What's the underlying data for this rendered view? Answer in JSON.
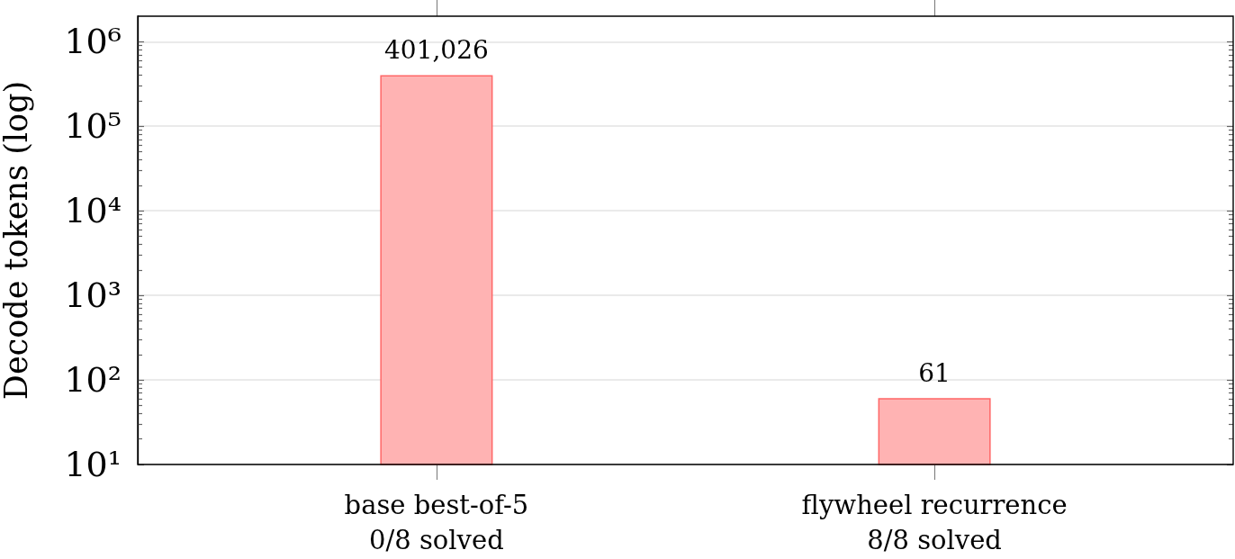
{
  "chart_data": {
    "type": "bar",
    "ylabel": "Decode tokens (log)",
    "categories": [
      "base best-of-5\n0/8 solved",
      "flywheel recurrence\n8/8 solved"
    ],
    "values": [
      401026,
      61
    ],
    "value_labels": [
      "401,026",
      "61"
    ],
    "color": "#ffb3b3",
    "log": true,
    "ylim": [
      10,
      2000000
    ],
    "yticks": [
      {
        "value": 10,
        "label": "10¹"
      },
      {
        "value": 20,
        "label": null
      },
      {
        "value": 30,
        "label": null
      },
      {
        "value": 40,
        "label": null
      },
      {
        "value": 50,
        "label": null
      },
      {
        "value": 60,
        "label": null
      },
      {
        "value": 70,
        "label": null
      },
      {
        "value": 80,
        "label": null
      },
      {
        "value": 90,
        "label": null
      },
      {
        "value": 100,
        "label": "10²"
      },
      {
        "value": 200,
        "label": null
      },
      {
        "value": 300,
        "label": null
      },
      {
        "value": 400,
        "label": null
      },
      {
        "value": 500,
        "label": null
      },
      {
        "value": 600,
        "label": null
      },
      {
        "value": 700,
        "label": null
      },
      {
        "value": 800,
        "label": null
      },
      {
        "value": 900,
        "label": null
      },
      {
        "value": 1000,
        "label": "10³"
      },
      {
        "value": 2000,
        "label": null
      },
      {
        "value": 3000,
        "label": null
      },
      {
        "value": 4000,
        "label": null
      },
      {
        "value": 5000,
        "label": null
      },
      {
        "value": 6000,
        "label": null
      },
      {
        "value": 7000,
        "label": null
      },
      {
        "value": 8000,
        "label": null
      },
      {
        "value": 9000,
        "label": null
      },
      {
        "value": 10000,
        "label": "10⁴"
      },
      {
        "value": 20000,
        "label": null
      },
      {
        "value": 30000,
        "label": null
      },
      {
        "value": 40000,
        "label": null
      },
      {
        "value": 50000,
        "label": null
      },
      {
        "value": 60000,
        "label": null
      },
      {
        "value": 70000,
        "label": null
      },
      {
        "value": 80000,
        "label": null
      },
      {
        "value": 90000,
        "label": null
      },
      {
        "value": 100000,
        "label": "10⁵"
      },
      {
        "value": 200000,
        "label": null
      },
      {
        "value": 300000,
        "label": null
      },
      {
        "value": 400000,
        "label": null
      },
      {
        "value": 500000,
        "label": null
      },
      {
        "value": 600000,
        "label": null
      },
      {
        "value": 700000,
        "label": null
      },
      {
        "value": 800000,
        "label": null
      },
      {
        "value": 900000,
        "label": null
      },
      {
        "value": 1000000,
        "label": "10⁶"
      }
    ],
    "grid": "y"
  }
}
